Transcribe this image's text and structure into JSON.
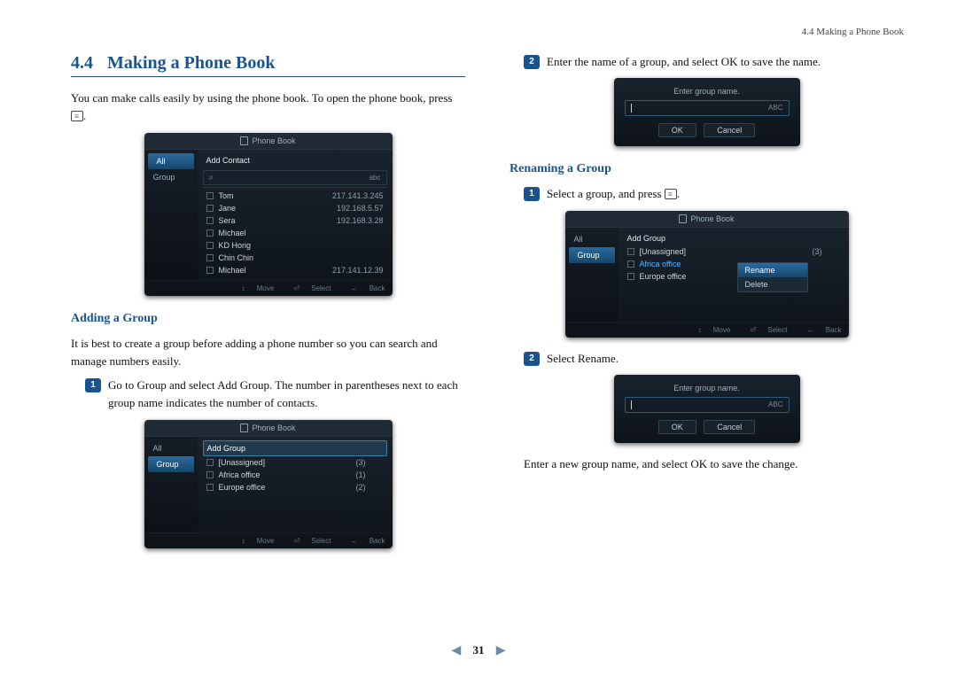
{
  "header": {
    "running": "4.4 Making a Phone Book"
  },
  "section": {
    "number": "4.4",
    "title": "Making a Phone Book"
  },
  "intro": {
    "before": "You can make calls easily by using the phone book. To open the phone book, press ",
    "after": "."
  },
  "shot1": {
    "title": "Phone Book",
    "sidebar": [
      "All",
      "Group"
    ],
    "sidebar_active": 0,
    "add": "Add Contact",
    "search_mode": "abc",
    "contacts": [
      {
        "name": "Tom",
        "ip": "217.141.3.245"
      },
      {
        "name": "Jane",
        "ip": "192.168.5.57"
      },
      {
        "name": "Sera",
        "ip": "192.168.3.28"
      },
      {
        "name": "Michael",
        "ip": ""
      },
      {
        "name": "KD Hong",
        "ip": ""
      },
      {
        "name": "Chin Chin",
        "ip": ""
      },
      {
        "name": "Michael",
        "ip": "217.141.12.39"
      }
    ],
    "footer": {
      "move": "Move",
      "select": "Select",
      "back": "Back"
    }
  },
  "sub1": {
    "title": "Adding a Group"
  },
  "sub1_intro": "It is best to create a group before adding a phone number so you can search and manage numbers easily.",
  "sub1_step1": "Go to Group and select Add Group. The number in parentheses next to each group name indicates the number of contacts.",
  "shot2": {
    "title": "Phone Book",
    "sidebar": [
      "All",
      "Group"
    ],
    "sidebar_active": 1,
    "add": "Add Group",
    "groups": [
      {
        "name": "[Unassigned]",
        "count": "(3)"
      },
      {
        "name": "Africa office",
        "count": "(1)"
      },
      {
        "name": "Europe office",
        "count": "(2)"
      }
    ],
    "footer": {
      "move": "Move",
      "select": "Select",
      "back": "Back"
    }
  },
  "rightcol": {
    "step2": "Enter the name of a group, and select OK to save the name.",
    "dlg": {
      "label": "Enter group name.",
      "mode": "ABC",
      "ok": "OK",
      "cancel": "Cancel"
    }
  },
  "sub2": {
    "title": "Renaming a Group"
  },
  "sub2_step1": {
    "before": "Select a group, and press ",
    "after": "."
  },
  "shot3": {
    "title": "Phone Book",
    "sidebar": [
      "All",
      "Group"
    ],
    "sidebar_active": 1,
    "add": "Add Group",
    "groups": [
      {
        "name": "[Unassigned]",
        "count": "(3)"
      },
      {
        "name": "Africa office",
        "count": ""
      },
      {
        "name": "Europe office",
        "count": ""
      }
    ],
    "sel_index": 1,
    "ctx": [
      "Rename",
      "Delete"
    ],
    "ctx_hi": 0,
    "footer": {
      "move": "Move",
      "select": "Select",
      "back": "Back"
    }
  },
  "sub2_step2": "Select Rename.",
  "sub2_tail": "Enter a new group name, and select OK to save the change.",
  "pagenum": "31"
}
